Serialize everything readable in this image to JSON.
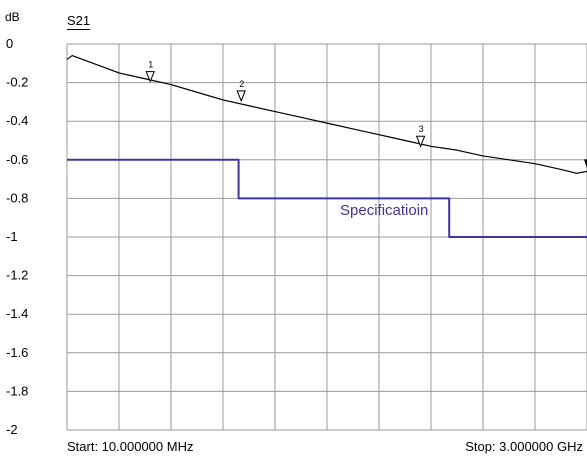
{
  "header": {
    "unit_label": "dB",
    "trace_name": "S21"
  },
  "footer": {
    "start": "Start: 10.000000 MHz",
    "stop": "Stop: 3.000000 GHz"
  },
  "chart_data": {
    "type": "line",
    "title": "S21",
    "ylabel": "dB",
    "xlabel": "",
    "x_start": "10.000000 MHz",
    "x_stop": "3.000000 GHz",
    "x_divisions": 10,
    "ylim": [
      -2,
      0
    ],
    "yticks": [
      "0",
      "-0.2",
      "-0.4",
      "-0.6",
      "-0.8",
      "-1",
      "-1.2",
      "-1.4",
      "-1.6",
      "-1.8",
      "-2"
    ],
    "ytick_values": [
      0,
      -0.2,
      -0.4,
      -0.6,
      -0.8,
      -1,
      -1.2,
      -1.4,
      -1.6,
      -1.8,
      -2
    ],
    "grid": true,
    "series": [
      {
        "role": "trace",
        "color": "#000000",
        "x": [
          0,
          0.1,
          0.3,
          0.6,
          1.0,
          1.5,
          2.0,
          2.5,
          3.0,
          3.5,
          4.0,
          4.5,
          5.0,
          5.5,
          6.0,
          6.5,
          7.0,
          7.5,
          8.0,
          8.5,
          9.0,
          9.5,
          9.8,
          10.0
        ],
        "y": [
          -0.08,
          -0.06,
          -0.08,
          -0.11,
          -0.15,
          -0.18,
          -0.21,
          -0.25,
          -0.29,
          -0.32,
          -0.35,
          -0.38,
          -0.41,
          -0.44,
          -0.47,
          -0.5,
          -0.53,
          -0.55,
          -0.58,
          -0.6,
          -0.62,
          -0.65,
          -0.67,
          -0.66
        ]
      },
      {
        "name": "Specificatioin",
        "role": "spec_limit",
        "color": "#3b35a8",
        "x": [
          0,
          3.3,
          3.3,
          7.35,
          7.35,
          10
        ],
        "y": [
          -0.6,
          -0.6,
          -0.8,
          -0.8,
          -1.0,
          -1.0
        ]
      }
    ],
    "annotations": [
      {
        "label": "Specificatioin",
        "x": 5.25,
        "y": -0.86
      }
    ],
    "markers": [
      {
        "label": "1",
        "x": 1.6,
        "y": -0.205
      },
      {
        "label": "2",
        "x": 3.35,
        "y": -0.305
      },
      {
        "label": "3",
        "x": 6.8,
        "y": -0.54
      },
      {
        "label": "",
        "x": 10.0,
        "y": -0.66
      }
    ]
  }
}
